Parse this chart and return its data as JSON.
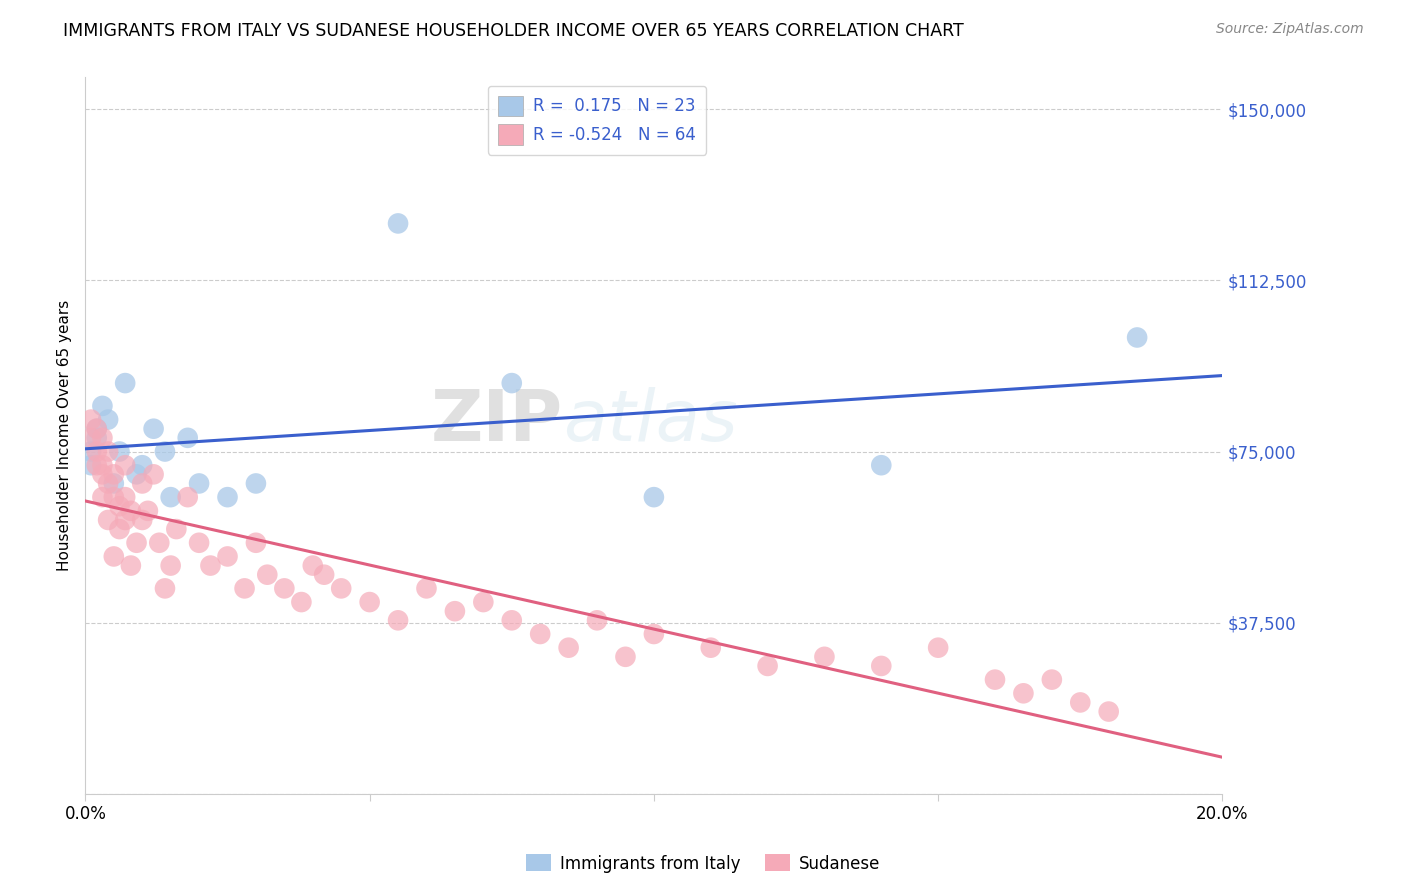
{
  "title": "IMMIGRANTS FROM ITALY VS SUDANESE HOUSEHOLDER INCOME OVER 65 YEARS CORRELATION CHART",
  "source": "Source: ZipAtlas.com",
  "ylabel": "Householder Income Over 65 years",
  "xlim": [
    0.0,
    0.2
  ],
  "ylim": [
    0,
    157000
  ],
  "yticks": [
    0,
    37500,
    75000,
    112500,
    150000
  ],
  "ytick_labels": [
    "",
    "$37,500",
    "$75,000",
    "$112,500",
    "$150,000"
  ],
  "xticks": [
    0.0,
    0.05,
    0.1,
    0.15,
    0.2
  ],
  "xtick_labels": [
    "0.0%",
    "",
    "",
    "",
    "20.0%"
  ],
  "blue_R": 0.175,
  "blue_N": 23,
  "pink_R": -0.524,
  "pink_N": 64,
  "blue_color": "#a8c8e8",
  "pink_color": "#f5aab8",
  "blue_line_color": "#3a5fcd",
  "pink_line_color": "#e06080",
  "legend_label_blue": "Immigrants from Italy",
  "legend_label_pink": "Sudanese",
  "watermark_zip": "ZIP",
  "watermark_atlas": "atlas",
  "blue_scatter_x": [
    0.001,
    0.001,
    0.002,
    0.002,
    0.003,
    0.004,
    0.005,
    0.006,
    0.007,
    0.009,
    0.01,
    0.012,
    0.014,
    0.015,
    0.018,
    0.02,
    0.025,
    0.03,
    0.055,
    0.075,
    0.1,
    0.14,
    0.185
  ],
  "blue_scatter_y": [
    72000,
    75000,
    78000,
    80000,
    85000,
    82000,
    68000,
    75000,
    90000,
    70000,
    72000,
    80000,
    75000,
    65000,
    78000,
    68000,
    65000,
    68000,
    125000,
    90000,
    65000,
    72000,
    100000
  ],
  "pink_scatter_x": [
    0.001,
    0.001,
    0.002,
    0.002,
    0.002,
    0.003,
    0.003,
    0.003,
    0.003,
    0.004,
    0.004,
    0.004,
    0.005,
    0.005,
    0.005,
    0.006,
    0.006,
    0.007,
    0.007,
    0.007,
    0.008,
    0.008,
    0.009,
    0.01,
    0.01,
    0.011,
    0.012,
    0.013,
    0.014,
    0.015,
    0.016,
    0.018,
    0.02,
    0.022,
    0.025,
    0.028,
    0.03,
    0.032,
    0.035,
    0.038,
    0.04,
    0.042,
    0.045,
    0.05,
    0.055,
    0.06,
    0.065,
    0.07,
    0.075,
    0.08,
    0.085,
    0.09,
    0.095,
    0.1,
    0.11,
    0.12,
    0.13,
    0.14,
    0.15,
    0.16,
    0.165,
    0.17,
    0.175,
    0.18
  ],
  "pink_scatter_y": [
    78000,
    82000,
    75000,
    72000,
    80000,
    78000,
    72000,
    65000,
    70000,
    68000,
    60000,
    75000,
    65000,
    70000,
    52000,
    58000,
    63000,
    72000,
    60000,
    65000,
    62000,
    50000,
    55000,
    68000,
    60000,
    62000,
    70000,
    55000,
    45000,
    50000,
    58000,
    65000,
    55000,
    50000,
    52000,
    45000,
    55000,
    48000,
    45000,
    42000,
    50000,
    48000,
    45000,
    42000,
    38000,
    45000,
    40000,
    42000,
    38000,
    35000,
    32000,
    38000,
    30000,
    35000,
    32000,
    28000,
    30000,
    28000,
    32000,
    25000,
    22000,
    25000,
    20000,
    18000
  ]
}
